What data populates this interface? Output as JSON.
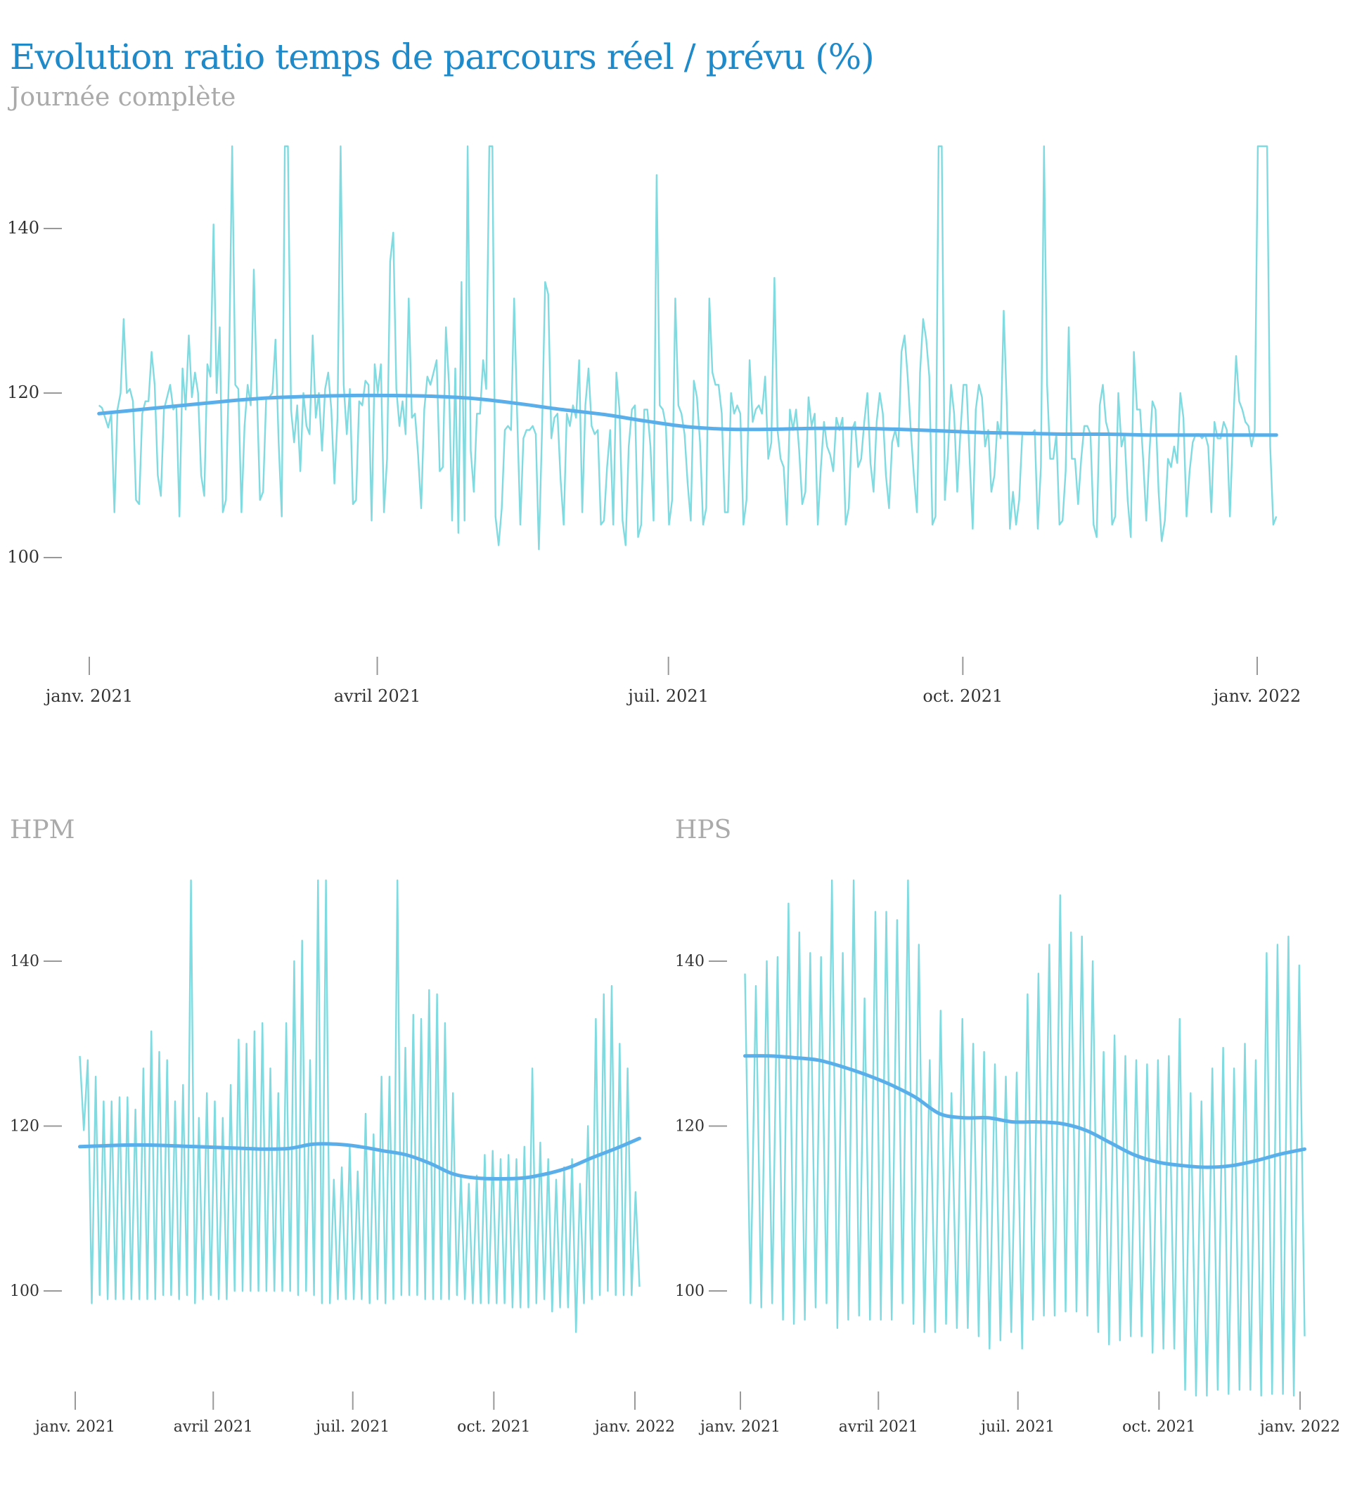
{
  "title": "Evolution ratio temps de parcours réel / prévu (%)",
  "subtitle": "Journée complète",
  "colors": {
    "title": "#1f8ac9",
    "subtitle": "#aaaaaa",
    "raw_line": "#7fdbe0",
    "trend_line": "#5aafea",
    "tick": "#999999"
  },
  "chart_data": [
    {
      "id": "journee",
      "type": "line",
      "title": "Journée complète",
      "x_ticks": [
        "janv. 2021",
        "avril 2021",
        "juil. 2021",
        "oct. 2021",
        "janv. 2022"
      ],
      "y_ticks": [
        100,
        120,
        140
      ],
      "xlim": [
        "2020-12-17",
        "2022-01-13"
      ],
      "ylim": [
        88,
        150
      ],
      "series": [
        {
          "role": "raw",
          "start": "2021-01-04",
          "end": "2022-01-07",
          "values": [
            118.5,
            118.2,
            117,
            115.8,
            117.5,
            105.5,
            118,
            120,
            129,
            120,
            120.5,
            119,
            107,
            106.5,
            117.5,
            119,
            119,
            125,
            121,
            110,
            107.5,
            118,
            119.5,
            121,
            118,
            118.5,
            105,
            123,
            118,
            127,
            119.5,
            122.5,
            120,
            110,
            107.5,
            123.5,
            122,
            140.5,
            120,
            128,
            105.5,
            107,
            123,
            150,
            121,
            120.5,
            105.5,
            116,
            121,
            118.5,
            135,
            120,
            107,
            108,
            119.5,
            119.5,
            120,
            126.5,
            114,
            105,
            150,
            150,
            118,
            114,
            118.5,
            110.5,
            120,
            116,
            115,
            127,
            117,
            120,
            113,
            120.5,
            122.5,
            118,
            109,
            117,
            150,
            121,
            115,
            120.5,
            106.5,
            107,
            119,
            118.5,
            121.5,
            121,
            104.5,
            123.5,
            120,
            123.5,
            105.5,
            112,
            136,
            139.5,
            120.5,
            116,
            119,
            115,
            131.5,
            117,
            117.5,
            112.5,
            106,
            118,
            122,
            121,
            122.5,
            124,
            110.5,
            111,
            128,
            121,
            104.5,
            123,
            103,
            133.5,
            104.5,
            150,
            113,
            108,
            117.5,
            117.5,
            124,
            120.5,
            150,
            150,
            105,
            101.5,
            106,
            115.5,
            116,
            115.5,
            131.5,
            117,
            104,
            114.5,
            115.5,
            115.5,
            116,
            115,
            101,
            115.5,
            133.5,
            132,
            114.5,
            117,
            117.5,
            109.5,
            104,
            117.5,
            116,
            118.5,
            117,
            124,
            105.5,
            118.5,
            123,
            116,
            115,
            115.5,
            104,
            104.5,
            111,
            115.5,
            104,
            122.5,
            118,
            104.5,
            101.5,
            113.5,
            118,
            118.5,
            102.5,
            104,
            118,
            118,
            113.5,
            104.5,
            146.5,
            118.5,
            118,
            116,
            104,
            107,
            131.5,
            118.5,
            117.5,
            115,
            109,
            104.5,
            121.5,
            119.5,
            114,
            104,
            106,
            131.5,
            122.5,
            121,
            121,
            117.5,
            105.5,
            105.5,
            120,
            117.5,
            118.5,
            117.5,
            104,
            107,
            124,
            116.5,
            118,
            118.5,
            117.5,
            122,
            112,
            114,
            134,
            115.5,
            112,
            111,
            104,
            118,
            115.5,
            118,
            113,
            106.5,
            108,
            119.5,
            116,
            117.5,
            104,
            111,
            116.5,
            113.5,
            112.5,
            110.5,
            117,
            115.5,
            117,
            104,
            106,
            115.5,
            116.5,
            111,
            112,
            116.5,
            120,
            111.5,
            108,
            116.5,
            120,
            117.5,
            110,
            106,
            114,
            115.5,
            113.5,
            125,
            127,
            122,
            115.5,
            110,
            105.5,
            122.5,
            129,
            126.5,
            122,
            104,
            105,
            150,
            150,
            107,
            112.5,
            121,
            117.5,
            108,
            115,
            121,
            121,
            112,
            103.5,
            118,
            121,
            119.5,
            113.5,
            115.5,
            108,
            110,
            116.5,
            114.5,
            130,
            118.5,
            103.5,
            108,
            104,
            107,
            115,
            115,
            115,
            115,
            115.5,
            103.5,
            111,
            150,
            121,
            112,
            112,
            115,
            104,
            104.5,
            110.5,
            128,
            112,
            112,
            106.5,
            112,
            116,
            116,
            115,
            104,
            102.5,
            118.5,
            121,
            116.5,
            115,
            104,
            105,
            120,
            113.5,
            115,
            107,
            102.5,
            125,
            118,
            118,
            112,
            104.5,
            112.5,
            119,
            118,
            108,
            102,
            104.5,
            112,
            111,
            113.5,
            111.5,
            120,
            117,
            105,
            110.5,
            114,
            115,
            115,
            114.5,
            115,
            113.5,
            105.5,
            116.5,
            114.5,
            114.5,
            116.5,
            115.5,
            105,
            115.5,
            124.5,
            119,
            118,
            116.5,
            116,
            113.5,
            115.5,
            150,
            150,
            150,
            150,
            113.5,
            104,
            105
          ]
        },
        {
          "role": "trend",
          "start": "2021-01-04",
          "end": "2022-01-07",
          "values": [
            117.5,
            118,
            118.5,
            119,
            119.4,
            119.6,
            119.7,
            119.7,
            119.6,
            119.3,
            118.7,
            118,
            117.4,
            116.6,
            115.9,
            115.6,
            115.6,
            115.7,
            115.7,
            115.6,
            115.4,
            115.2,
            115.1,
            115,
            115,
            114.9,
            114.9,
            114.9,
            114.9
          ]
        }
      ]
    },
    {
      "id": "hpm",
      "type": "line",
      "title": "HPM",
      "x_ticks": [
        "janv. 2021",
        "avril 2021",
        "juil. 2021",
        "oct. 2021",
        "janv. 2022"
      ],
      "y_ticks": [
        100,
        120,
        140
      ],
      "xlim": [
        "2020-12-28",
        "2022-01-06"
      ],
      "ylim": [
        87,
        150
      ],
      "series": [
        {
          "role": "raw",
          "start": "2021-01-04",
          "end": "2022-01-04",
          "values": [
            128.5,
            119.5,
            128,
            98.5,
            126,
            99.5,
            123,
            99,
            123,
            99,
            123.5,
            99,
            123.5,
            99,
            122,
            99,
            127,
            99,
            131.5,
            99,
            129,
            99.5,
            128,
            99.5,
            123,
            99,
            125,
            99.5,
            150,
            98.5,
            121,
            99,
            124,
            99.5,
            123,
            99,
            121,
            99,
            125,
            100,
            130.5,
            100,
            130,
            100,
            131.5,
            100,
            132.5,
            100,
            127,
            100,
            124,
            100,
            132.5,
            100,
            140,
            99.5,
            142.5,
            100,
            128,
            99.5,
            150,
            98.5,
            150,
            98.5,
            113.5,
            99,
            115,
            99,
            117.5,
            99,
            114.5,
            99,
            121.5,
            98.5,
            119,
            99,
            126,
            98.5,
            126,
            99,
            150,
            99.5,
            129.5,
            99.5,
            133.5,
            99.5,
            133,
            99,
            136.5,
            99,
            136,
            99,
            132.5,
            99,
            124,
            99.5,
            114,
            99,
            113,
            98.5,
            114,
            98.5,
            116.5,
            98.5,
            117,
            98.5,
            116,
            98.5,
            116.5,
            98,
            116,
            98,
            117.5,
            98,
            127,
            98.5,
            118,
            99,
            116,
            97.5,
            113.5,
            98,
            115,
            98,
            116,
            95,
            113,
            98.5,
            120,
            99,
            133,
            99.5,
            136,
            100,
            137,
            99.5,
            130,
            99.5,
            127,
            99.5,
            112,
            100.5
          ]
        },
        {
          "role": "trend",
          "start": "2021-01-04",
          "end": "2022-01-04",
          "values": [
            117.5,
            117.6,
            117.7,
            117.7,
            117.6,
            117.5,
            117.4,
            117.3,
            117.2,
            117.3,
            117.8,
            117.8,
            117.5,
            117,
            116.5,
            115.5,
            114.2,
            113.7,
            113.6,
            113.7,
            114.2,
            115,
            116.2,
            117.3,
            118.5
          ]
        }
      ]
    },
    {
      "id": "hps",
      "type": "line",
      "title": "HPS",
      "x_ticks": [
        "janv. 2021",
        "avril 2021",
        "juil. 2021",
        "oct. 2021",
        "janv. 2022"
      ],
      "y_ticks": [
        100,
        120,
        140
      ],
      "xlim": [
        "2020-12-28",
        "2022-01-06"
      ],
      "ylim": [
        87,
        150
      ],
      "series": [
        {
          "role": "raw",
          "start": "2021-01-04",
          "end": "2022-01-04",
          "values": [
            138.5,
            98.5,
            137,
            98,
            140,
            98.5,
            140.5,
            96.5,
            147,
            96,
            143.5,
            96.5,
            141,
            98,
            140.5,
            98.5,
            150,
            95.5,
            141,
            96.5,
            150,
            97,
            135.5,
            96.5,
            146,
            96.5,
            146,
            96.5,
            145,
            98.5,
            150,
            96,
            142,
            95,
            128,
            95,
            134,
            96,
            124,
            95.5,
            133,
            95.5,
            130,
            94.5,
            129,
            93,
            127.5,
            94,
            126,
            95,
            126.5,
            93,
            136,
            96.5,
            138.5,
            97,
            142,
            97,
            148,
            97.5,
            143.5,
            97.5,
            143,
            97,
            140,
            95,
            129,
            93.5,
            131,
            94,
            128.5,
            94.5,
            128,
            94.5,
            127.5,
            92.5,
            128,
            93,
            128.5,
            93,
            133,
            88,
            124,
            87,
            123,
            87,
            127,
            88,
            129.5,
            87.5,
            127,
            88,
            130,
            88,
            128,
            87,
            141,
            87.5,
            142,
            87.5,
            143,
            87,
            139.5,
            94.5
          ]
        },
        {
          "role": "trend",
          "start": "2021-01-04",
          "end": "2022-01-04",
          "values": [
            128.5,
            128.5,
            128.3,
            128,
            127.2,
            126.2,
            125,
            123.5,
            121.5,
            121,
            121,
            120.5,
            120.5,
            120.3,
            119.5,
            118,
            116.5,
            115.6,
            115.2,
            115,
            115.2,
            115.8,
            116.6,
            117.2
          ]
        }
      ]
    }
  ]
}
